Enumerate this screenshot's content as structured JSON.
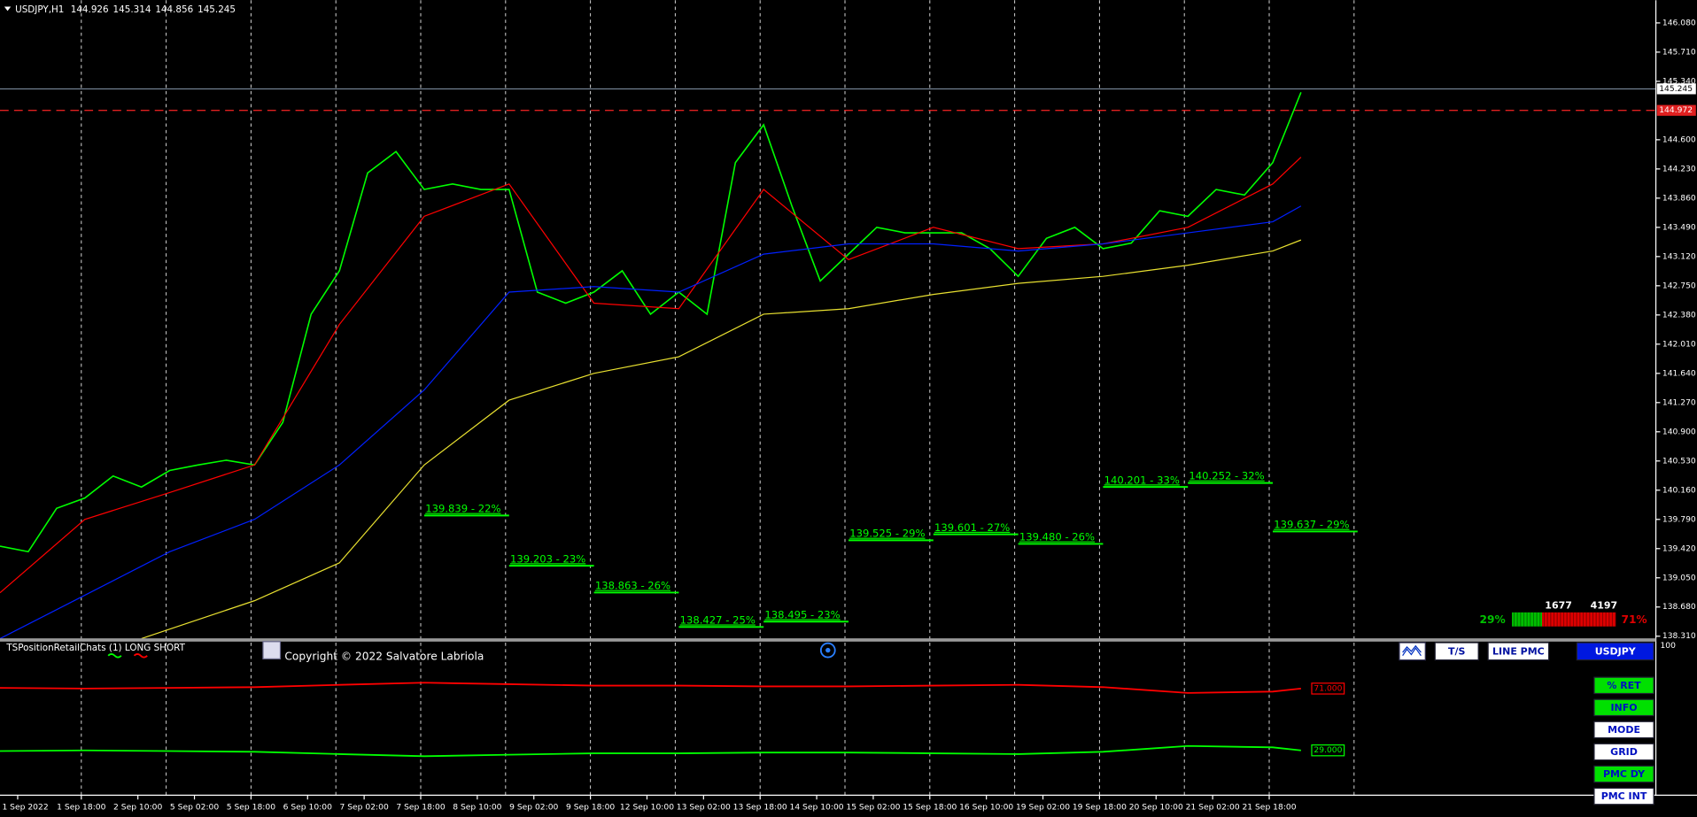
{
  "chart_data": [
    {
      "type": "line",
      "title": "USDJPY,H1",
      "ohlc": [
        144.926,
        145.314,
        144.856,
        145.245
      ],
      "xlim": [
        0,
        480
      ],
      "ylim": [
        138.283,
        146.368
      ],
      "yticks": [
        {
          "value": 146.08,
          "label": "146.080"
        },
        {
          "value": 145.71,
          "label": "145.710"
        },
        {
          "value": 145.34,
          "label": "145.340"
        },
        {
          "value": 144.6,
          "label": "144.600"
        },
        {
          "value": 144.23,
          "label": "144.230"
        },
        {
          "value": 143.86,
          "label": "143.860"
        },
        {
          "value": 143.49,
          "label": "143.490"
        },
        {
          "value": 143.12,
          "label": "143.120"
        },
        {
          "value": 142.75,
          "label": "142.750"
        },
        {
          "value": 142.38,
          "label": "142.380"
        },
        {
          "value": 142.01,
          "label": "142.010"
        },
        {
          "value": 141.64,
          "label": "141.640"
        },
        {
          "value": 141.27,
          "label": "141.270"
        },
        {
          "value": 140.9,
          "label": "140.900"
        },
        {
          "value": 140.53,
          "label": "140.530"
        },
        {
          "value": 140.16,
          "label": "140.160"
        },
        {
          "value": 139.79,
          "label": "139.790"
        },
        {
          "value": 139.42,
          "label": "139.420"
        },
        {
          "value": 139.05,
          "label": "139.050"
        },
        {
          "value": 138.68,
          "label": "138.680"
        },
        {
          "value": 138.31,
          "label": "138.310"
        }
      ],
      "xticks": [
        {
          "value": 5,
          "label": "1 Sep 2022"
        },
        {
          "value": 23,
          "label": "1 Sep 18:00"
        },
        {
          "value": 39,
          "label": "2 Sep 10:00"
        },
        {
          "value": 55,
          "label": "5 Sep 02:00"
        },
        {
          "value": 71,
          "label": "5 Sep 18:00"
        },
        {
          "value": 87,
          "label": "6 Sep 10:00"
        },
        {
          "value": 103,
          "label": "7 Sep 02:00"
        },
        {
          "value": 119,
          "label": "7 Sep 18:00"
        },
        {
          "value": 135,
          "label": "8 Sep 10:00"
        },
        {
          "value": 151,
          "label": "9 Sep 02:00"
        },
        {
          "value": 167,
          "label": "9 Sep 18:00"
        },
        {
          "value": 183,
          "label": "12 Sep 10:00"
        },
        {
          "value": 199,
          "label": "13 Sep 02:00"
        },
        {
          "value": 215,
          "label": "13 Sep 18:00"
        },
        {
          "value": 231,
          "label": "14 Sep 10:00"
        },
        {
          "value": 247,
          "label": "15 Sep 02:00"
        },
        {
          "value": 263,
          "label": "15 Sep 18:00"
        },
        {
          "value": 279,
          "label": "16 Sep 10:00"
        },
        {
          "value": 295,
          "label": "19 Sep 02:00"
        },
        {
          "value": 311,
          "label": "19 Sep 18:00"
        },
        {
          "value": 327,
          "label": "20 Sep 10:00"
        },
        {
          "value": 343,
          "label": "21 Sep 02:00"
        },
        {
          "value": 359,
          "label": "21 Sep 18:00"
        }
      ],
      "x_gridlines": [
        23,
        47,
        71,
        95,
        119,
        143,
        167,
        191,
        215,
        239,
        263,
        287,
        311,
        335,
        359,
        383
      ],
      "series": [
        {
          "color": "#00ff00",
          "x": [
            0,
            8,
            16,
            24,
            32,
            40,
            48,
            56,
            64,
            72,
            80,
            88,
            96,
            104,
            112,
            120,
            128,
            136,
            144,
            152,
            160,
            168,
            176,
            184,
            192,
            200,
            208,
            216,
            224,
            232,
            240,
            248,
            256,
            264,
            272,
            280,
            288,
            296,
            304,
            312,
            320,
            328,
            336,
            344,
            352,
            360,
            368
          ],
          "values": [
            139.45,
            139.38,
            139.93,
            140.06,
            140.34,
            140.2,
            140.41,
            140.48,
            140.54,
            140.48,
            141.02,
            142.39,
            142.94,
            144.18,
            144.45,
            143.97,
            144.04,
            143.97,
            143.97,
            142.67,
            142.53,
            142.67,
            142.94,
            142.39,
            142.67,
            142.39,
            144.31,
            144.79,
            143.76,
            142.81,
            143.15,
            143.49,
            143.42,
            143.42,
            143.42,
            143.22,
            142.87,
            143.35,
            143.49,
            143.22,
            143.29,
            143.7,
            143.63,
            143.97,
            143.9,
            144.31,
            145.2
          ]
        },
        {
          "color": "#ff0000",
          "x": [
            0,
            24,
            48,
            72,
            96,
            120,
            144,
            168,
            192,
            216,
            240,
            264,
            288,
            312,
            336,
            360,
            368
          ],
          "values": [
            138.86,
            139.79,
            140.13,
            140.48,
            142.26,
            143.63,
            144.04,
            142.53,
            142.46,
            143.97,
            143.08,
            143.49,
            143.22,
            143.28,
            143.49,
            144.04,
            144.38
          ]
        },
        {
          "color": "#0020ff",
          "x": [
            0,
            24,
            48,
            72,
            96,
            120,
            144,
            168,
            192,
            216,
            240,
            264,
            288,
            312,
            336,
            360,
            368
          ],
          "values": [
            138.28,
            138.83,
            139.38,
            139.79,
            140.48,
            141.43,
            142.67,
            142.74,
            142.67,
            143.15,
            143.28,
            143.28,
            143.19,
            143.28,
            143.42,
            143.56,
            143.76
          ]
        },
        {
          "color": "#e8e030",
          "x": [
            40,
            72,
            96,
            120,
            144,
            168,
            192,
            216,
            240,
            264,
            288,
            312,
            336,
            360,
            368
          ],
          "values": [
            138.28,
            138.76,
            139.24,
            140.48,
            141.3,
            141.64,
            141.85,
            142.39,
            142.46,
            142.64,
            142.78,
            142.87,
            143.01,
            143.19,
            143.33
          ]
        }
      ],
      "current_price": 145.245,
      "reference_level": 144.972,
      "levels": [
        {
          "label": "139.839 - 22%",
          "value": 139.839,
          "x": [
            120,
            144
          ]
        },
        {
          "label": "139.203 - 23%",
          "value": 139.203,
          "x": [
            144,
            168
          ]
        },
        {
          "label": "138.863 - 26%",
          "value": 138.863,
          "x": [
            168,
            192
          ]
        },
        {
          "label": "138.427 - 25%",
          "value": 138.427,
          "x": [
            192,
            216
          ]
        },
        {
          "label": "138.495 - 23%",
          "value": 138.495,
          "x": [
            216,
            240
          ]
        },
        {
          "label": "139.525 - 29%",
          "value": 139.525,
          "x": [
            240,
            264
          ]
        },
        {
          "label": "139.601 - 27%",
          "value": 139.601,
          "x": [
            264,
            288
          ]
        },
        {
          "label": "139.480 - 26%",
          "value": 139.48,
          "x": [
            288,
            312
          ]
        },
        {
          "label": "140.201 - 33%",
          "value": 140.201,
          "x": [
            312,
            336
          ]
        },
        {
          "label": "140.252 - 32%",
          "value": 140.252,
          "x": [
            336,
            360
          ]
        },
        {
          "label": "139.637 - 29%",
          "value": 139.637,
          "x": [
            360,
            384
          ]
        }
      ],
      "sentiment": {
        "counts": [
          1677,
          4197
        ],
        "pct": [
          29,
          71
        ],
        "pct_labels": [
          "29%",
          "71%"
        ],
        "colors": [
          "#00c000",
          "#e00000"
        ]
      }
    },
    {
      "type": "line",
      "title": "TSPositionRetailChats (1) LONG SHORT",
      "xlim": [
        0,
        480
      ],
      "ylim": [
        0,
        100
      ],
      "yticks": [
        100
      ],
      "series": [
        {
          "color": "#ff0000",
          "x": [
            0,
            24,
            48,
            72,
            96,
            120,
            144,
            168,
            192,
            216,
            240,
            264,
            288,
            312,
            336,
            360,
            368
          ],
          "values": [
            71.5,
            71,
            71.5,
            72,
            73.5,
            75,
            74,
            73,
            73,
            72.5,
            72.5,
            73,
            73.5,
            72,
            68,
            69,
            71
          ],
          "tag": {
            "value": 71,
            "label": "71.000"
          }
        },
        {
          "color": "#00ff00",
          "x": [
            0,
            24,
            48,
            72,
            96,
            120,
            144,
            168,
            192,
            216,
            240,
            264,
            288,
            312,
            336,
            360,
            368
          ],
          "values": [
            28.5,
            29,
            28.5,
            28,
            26.5,
            25,
            26,
            27,
            27,
            27.5,
            27.5,
            27,
            26.5,
            28,
            32,
            31,
            29
          ],
          "tag": {
            "value": 29,
            "label": "29.000"
          }
        }
      ]
    }
  ],
  "ui": {
    "copyright": "Copyright © 2022 Salvatore Labriola",
    "top_buttons": [
      "T/S",
      "LINE PMC"
    ],
    "symbol_button": "USDJPY",
    "side_buttons": [
      "% RET",
      "INFO",
      "MODE",
      "GRID",
      "PMC DY",
      "PMC INT"
    ]
  }
}
